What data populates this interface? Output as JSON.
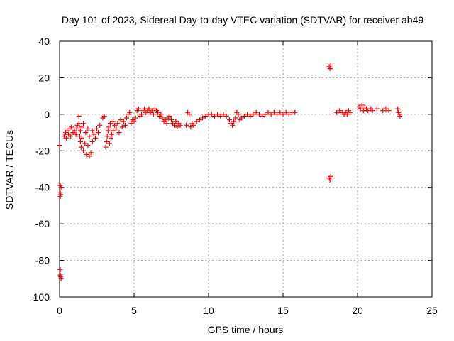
{
  "chart_data": {
    "type": "scatter",
    "title": "Day 101 of 2023, Sidereal Day-to-day VTEC variation (SDTVAR) for receiver ab49",
    "xlabel": "GPS time / hours",
    "ylabel": "SDTVAR / TECUs",
    "xlim": [
      0,
      25
    ],
    "ylim": [
      -100,
      40
    ],
    "xticks": [
      0,
      5,
      10,
      15,
      20,
      25
    ],
    "yticks": [
      -100,
      -80,
      -60,
      -40,
      -20,
      0,
      20,
      40
    ],
    "grid": true,
    "marker": "plus",
    "series": [
      {
        "name": "SDTVAR",
        "color": "#ff0000",
        "points": [
          [
            0.0,
            -17
          ],
          [
            0.05,
            -39
          ],
          [
            0.05,
            -43
          ],
          [
            0.05,
            -45
          ],
          [
            0.08,
            -44
          ],
          [
            0.1,
            -40
          ],
          [
            0.05,
            -85
          ],
          [
            0.05,
            -88
          ],
          [
            0.08,
            -89
          ],
          [
            0.1,
            -90
          ],
          [
            0.3,
            -12
          ],
          [
            0.4,
            -10
          ],
          [
            0.45,
            -13
          ],
          [
            0.5,
            -9
          ],
          [
            0.6,
            -11
          ],
          [
            0.7,
            -8
          ],
          [
            0.75,
            -12
          ],
          [
            0.8,
            -7
          ],
          [
            0.9,
            -10
          ],
          [
            1.0,
            -9
          ],
          [
            1.1,
            -11
          ],
          [
            1.15,
            -8
          ],
          [
            1.2,
            -6
          ],
          [
            1.3,
            -5
          ],
          [
            1.3,
            -1
          ],
          [
            1.35,
            -12
          ],
          [
            1.4,
            -15
          ],
          [
            1.4,
            -9
          ],
          [
            1.45,
            -18
          ],
          [
            1.5,
            -7
          ],
          [
            1.5,
            -13
          ],
          [
            1.6,
            -20
          ],
          [
            1.6,
            -5
          ],
          [
            1.7,
            -16
          ],
          [
            1.75,
            -10
          ],
          [
            1.8,
            -22
          ],
          [
            1.9,
            -17
          ],
          [
            1.9,
            -8
          ],
          [
            2.0,
            -23
          ],
          [
            2.0,
            -12
          ],
          [
            2.1,
            -21
          ],
          [
            2.2,
            -15
          ],
          [
            2.2,
            -9
          ],
          [
            2.3,
            -11
          ],
          [
            2.4,
            -13
          ],
          [
            2.5,
            -8
          ],
          [
            2.6,
            -10
          ],
          [
            2.7,
            -6
          ],
          [
            2.9,
            -2
          ],
          [
            3.0,
            -1
          ],
          [
            3.1,
            -18
          ],
          [
            3.15,
            -15
          ],
          [
            3.2,
            -12
          ],
          [
            3.25,
            -9
          ],
          [
            3.3,
            -7
          ],
          [
            3.35,
            -16
          ],
          [
            3.4,
            -5
          ],
          [
            3.45,
            -13
          ],
          [
            3.5,
            -11
          ],
          [
            3.6,
            -4
          ],
          [
            3.6,
            -9
          ],
          [
            3.7,
            -6
          ],
          [
            3.8,
            -8
          ],
          [
            3.9,
            -5
          ],
          [
            4.0,
            -10
          ],
          [
            4.1,
            -3
          ],
          [
            4.2,
            -7
          ],
          [
            4.3,
            -4
          ],
          [
            4.4,
            -6
          ],
          [
            4.5,
            -2
          ],
          [
            4.6,
            0
          ],
          [
            4.7,
            1
          ],
          [
            4.8,
            -5
          ],
          [
            4.9,
            -3
          ],
          [
            5.0,
            -4
          ],
          [
            5.1,
            -2
          ],
          [
            5.2,
            2
          ],
          [
            5.3,
            3
          ],
          [
            5.4,
            -1
          ],
          [
            5.5,
            0
          ],
          [
            5.6,
            2
          ],
          [
            5.7,
            3
          ],
          [
            5.8,
            1
          ],
          [
            5.9,
            2
          ],
          [
            6.0,
            3
          ],
          [
            6.1,
            1
          ],
          [
            6.2,
            2
          ],
          [
            6.3,
            0
          ],
          [
            6.4,
            3
          ],
          [
            6.5,
            2
          ],
          [
            6.6,
            1
          ],
          [
            6.7,
            -1
          ],
          [
            6.8,
            0
          ],
          [
            6.9,
            -2
          ],
          [
            7.0,
            -4
          ],
          [
            7.1,
            -3
          ],
          [
            7.2,
            -5
          ],
          [
            7.3,
            -2
          ],
          [
            7.4,
            -1
          ],
          [
            7.5,
            -3
          ],
          [
            7.6,
            -5
          ],
          [
            7.7,
            -6
          ],
          [
            7.8,
            -4
          ],
          [
            7.9,
            -7
          ],
          [
            8.0,
            -5
          ],
          [
            8.1,
            -6
          ],
          [
            8.5,
            -6
          ],
          [
            8.6,
            1
          ],
          [
            8.7,
            0
          ],
          [
            8.8,
            -7
          ],
          [
            8.9,
            -5
          ],
          [
            9.0,
            -6
          ],
          [
            9.2,
            -4
          ],
          [
            9.4,
            -3
          ],
          [
            9.6,
            -2
          ],
          [
            9.8,
            -1
          ],
          [
            10.0,
            0
          ],
          [
            10.2,
            0
          ],
          [
            10.4,
            -1
          ],
          [
            10.6,
            0
          ],
          [
            10.8,
            -1
          ],
          [
            11.0,
            0
          ],
          [
            11.2,
            -1
          ],
          [
            11.4,
            -3
          ],
          [
            11.5,
            -5
          ],
          [
            11.6,
            -6
          ],
          [
            11.7,
            -4
          ],
          [
            11.8,
            -2
          ],
          [
            11.9,
            1
          ],
          [
            12.0,
            0
          ],
          [
            12.1,
            -3
          ],
          [
            12.2,
            -2
          ],
          [
            12.4,
            -1
          ],
          [
            12.6,
            0
          ],
          [
            12.8,
            -1
          ],
          [
            13.0,
            0
          ],
          [
            13.2,
            1
          ],
          [
            13.4,
            0
          ],
          [
            13.6,
            -1
          ],
          [
            13.8,
            0
          ],
          [
            14.0,
            1
          ],
          [
            14.2,
            0
          ],
          [
            14.4,
            1
          ],
          [
            14.6,
            0
          ],
          [
            14.8,
            1
          ],
          [
            15.0,
            0
          ],
          [
            15.2,
            1
          ],
          [
            15.4,
            0
          ],
          [
            15.6,
            1
          ],
          [
            15.8,
            1
          ],
          [
            18.1,
            26
          ],
          [
            18.15,
            25
          ],
          [
            18.2,
            27
          ],
          [
            18.1,
            -35
          ],
          [
            18.15,
            -36
          ],
          [
            18.2,
            -34
          ],
          [
            18.6,
            1
          ],
          [
            18.8,
            2
          ],
          [
            19.0,
            1
          ],
          [
            19.1,
            0
          ],
          [
            19.2,
            1
          ],
          [
            19.3,
            0
          ],
          [
            19.4,
            2
          ],
          [
            19.5,
            1
          ],
          [
            20.1,
            4
          ],
          [
            20.2,
            3
          ],
          [
            20.3,
            5
          ],
          [
            20.4,
            2
          ],
          [
            20.5,
            4
          ],
          [
            20.6,
            3
          ],
          [
            20.7,
            2
          ],
          [
            20.9,
            3
          ],
          [
            21.0,
            2
          ],
          [
            21.3,
            3
          ],
          [
            21.7,
            2
          ],
          [
            21.9,
            3
          ],
          [
            22.1,
            2
          ],
          [
            22.7,
            3
          ],
          [
            22.75,
            1
          ],
          [
            22.8,
            0
          ],
          [
            22.85,
            -1
          ]
        ]
      }
    ]
  }
}
